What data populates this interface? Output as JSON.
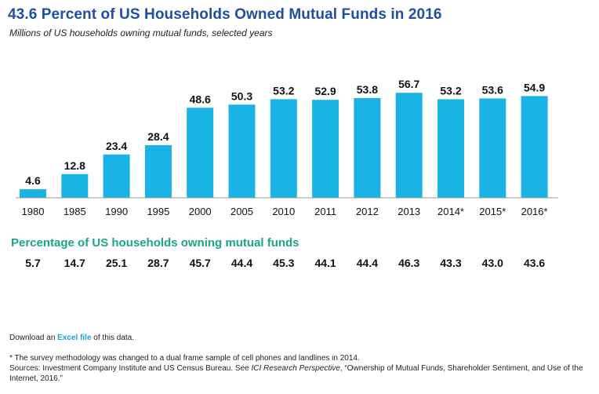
{
  "chart_data": {
    "type": "bar",
    "title": "43.6 Percent of US Households Owned Mutual Funds in 2016",
    "subtitle": "Millions of US households owning mutual funds, selected years",
    "categories": [
      "1980",
      "1985",
      "1990",
      "1995",
      "2000",
      "2005",
      "2010",
      "2011",
      "2012",
      "2013",
      "2014*",
      "2015*",
      "2016*"
    ],
    "values": [
      4.6,
      12.8,
      23.4,
      28.4,
      48.6,
      50.3,
      53.2,
      52.9,
      53.8,
      56.7,
      53.2,
      53.6,
      54.9
    ],
    "value_labels": [
      "4.6",
      "12.8",
      "23.4",
      "28.4",
      "48.6",
      "50.3",
      "53.2",
      "52.9",
      "53.8",
      "56.7",
      "53.2",
      "53.6",
      "54.9"
    ],
    "ylim": [
      0,
      60
    ],
    "grid": false,
    "bar_color": "#19b3e6"
  },
  "percentages": {
    "heading": "Percentage of US households owning mutual funds",
    "values": [
      "5.7",
      "14.7",
      "25.1",
      "28.7",
      "45.7",
      "44.4",
      "45.3",
      "44.1",
      "44.4",
      "46.3",
      "43.3",
      "43.0",
      "43.6"
    ]
  },
  "download": {
    "prefix": "Download an ",
    "link_label": "Excel file",
    "suffix": " of this data."
  },
  "footnotes": {
    "asterisk_note": "* The survey methodology was changed to a dual frame sample of cell phones and landlines in 2014.",
    "sources_prefix": "Sources: Investment Company Institute and US Census Bureau. See ",
    "sources_publication": "ICI Research Perspective",
    "sources_suffix": ", “Ownership of Mutual Funds, Shareholder Sentiment, and Use of the Internet, 2016.”"
  },
  "colors": {
    "title": "#1e4fa3",
    "bars": "#19b3e6",
    "heading_green": "#1aa58a",
    "link": "#1aa3de"
  }
}
